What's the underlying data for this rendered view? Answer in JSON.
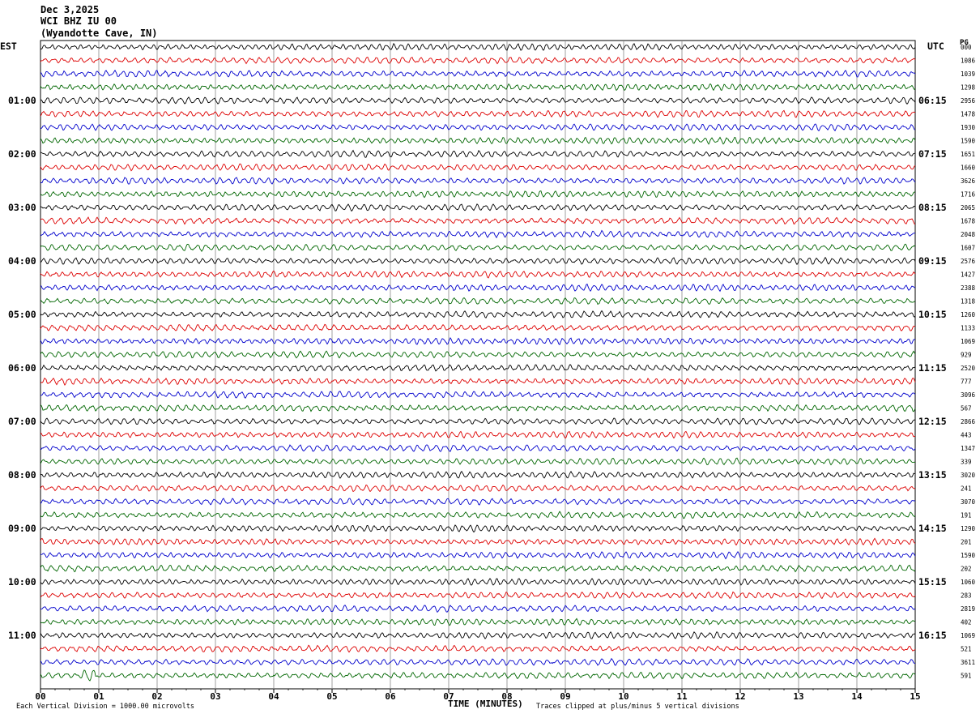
{
  "header": {
    "date": "Dec 3,2025",
    "station": "WCI BHZ IU 00",
    "location": "(Wyandotte Cave, IN)"
  },
  "axis_labels": {
    "left_tz": "EST",
    "right_tz": "UTC",
    "scale_unit": "PG"
  },
  "footer": {
    "scale_note": "Each Vertical Division = 1000.00 microvolts",
    "x_title": "TIME (MINUTES)",
    "clip_note": "Traces clipped at plus/minus 5 vertical divisions"
  },
  "chart_data": {
    "type": "line",
    "xlabel": "TIME (MINUTES)",
    "xlim": [
      0,
      15
    ],
    "x_ticks": [
      "00",
      "01",
      "02",
      "03",
      "04",
      "05",
      "06",
      "07",
      "08",
      "09",
      "10",
      "11",
      "12",
      "13",
      "14",
      "15"
    ],
    "trace_count": 48,
    "trace_minutes_each": 15,
    "trace_colors": [
      "#000000",
      "#dd0000",
      "#0000cc",
      "#006600"
    ],
    "left_hour_labels": [
      "01:00",
      "02:00",
      "03:00",
      "04:00",
      "05:00",
      "06:00",
      "07:00",
      "08:00",
      "09:00",
      "10:00",
      "11:00"
    ],
    "right_hour_labels": [
      "06:15",
      "07:15",
      "08:15",
      "09:15",
      "10:15",
      "11:15",
      "12:15",
      "13:15",
      "14:15",
      "15:15",
      "16:15"
    ],
    "right_values": [
      "000",
      "1086",
      "1039",
      "1298",
      "2956",
      "1478",
      "1930",
      "1590",
      "1651",
      "1660",
      "3626",
      "1716",
      "2065",
      "1678",
      "2048",
      "1607",
      "2576",
      "1427",
      "2388",
      "1318",
      "1260",
      "1133",
      "1069",
      "929",
      "2520",
      "777",
      "3096",
      "567",
      "2866",
      "443",
      "1347",
      "339",
      "3020",
      "241",
      "3070",
      "191",
      "1290",
      "201",
      "1590",
      "202",
      "1060",
      "283",
      "2819",
      "402",
      "1069",
      "521",
      "3611",
      "591"
    ],
    "grid": true
  }
}
